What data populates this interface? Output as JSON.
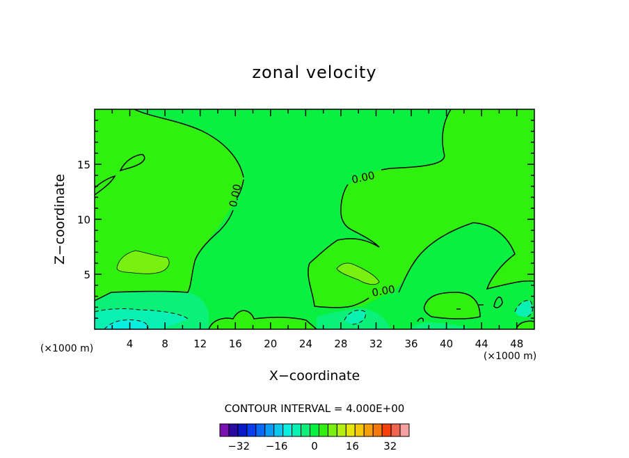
{
  "chart_data": {
    "type": "contour",
    "title": "zonal velocity",
    "xlabel": "X−coordinate",
    "ylabel": "Z−coordinate",
    "x_unit_left": "(×1000 m)",
    "x_unit_right": "(×1000 m)",
    "xlim": [
      0,
      50
    ],
    "ylim": [
      0,
      20
    ],
    "x_ticks": [
      4,
      8,
      12,
      16,
      20,
      24,
      28,
      32,
      36,
      40,
      44,
      48
    ],
    "y_ticks": [
      5,
      10,
      15
    ],
    "x_tick_labels": [
      "4",
      "8",
      "12",
      "16",
      "20",
      "24",
      "28",
      "32",
      "36",
      "40",
      "44",
      "48"
    ],
    "y_tick_labels": [
      "5",
      "10",
      "15"
    ],
    "contour_interval_text": "CONTOUR INTERVAL = 4.000E+00",
    "contour_labels": [
      "0.00",
      "0.00",
      "0.00"
    ],
    "colorbar": {
      "levels": [
        -40,
        -36,
        -32,
        -28,
        -24,
        -20,
        -16,
        -12,
        -8,
        -4,
        0,
        4,
        8,
        12,
        16,
        20,
        24,
        28,
        32,
        36,
        40
      ],
      "colors": [
        "#7a10b0",
        "#2a0aa0",
        "#0a1ac8",
        "#0a3cf0",
        "#0a6af5",
        "#0a9cf5",
        "#0ac8f0",
        "#0af0e0",
        "#0af0b0",
        "#0af078",
        "#0af040",
        "#30f010",
        "#78f010",
        "#b4f010",
        "#e6e60a",
        "#f5c80a",
        "#f5a00a",
        "#f5780a",
        "#f5400a",
        "#f06450",
        "#f5a0a0"
      ],
      "tick_labels": [
        "−32",
        "−16",
        "0",
        "16",
        "32"
      ],
      "tick_values": [
        -32,
        -16,
        0,
        16,
        32
      ]
    },
    "colors": {
      "background_field": "#0af040",
      "positive_region": "#30f010",
      "positive_strong": "#78f010",
      "negative_weak": "#0af078",
      "negative_mid": "#0af0b0",
      "negative_strong": "#0af0e0"
    }
  }
}
